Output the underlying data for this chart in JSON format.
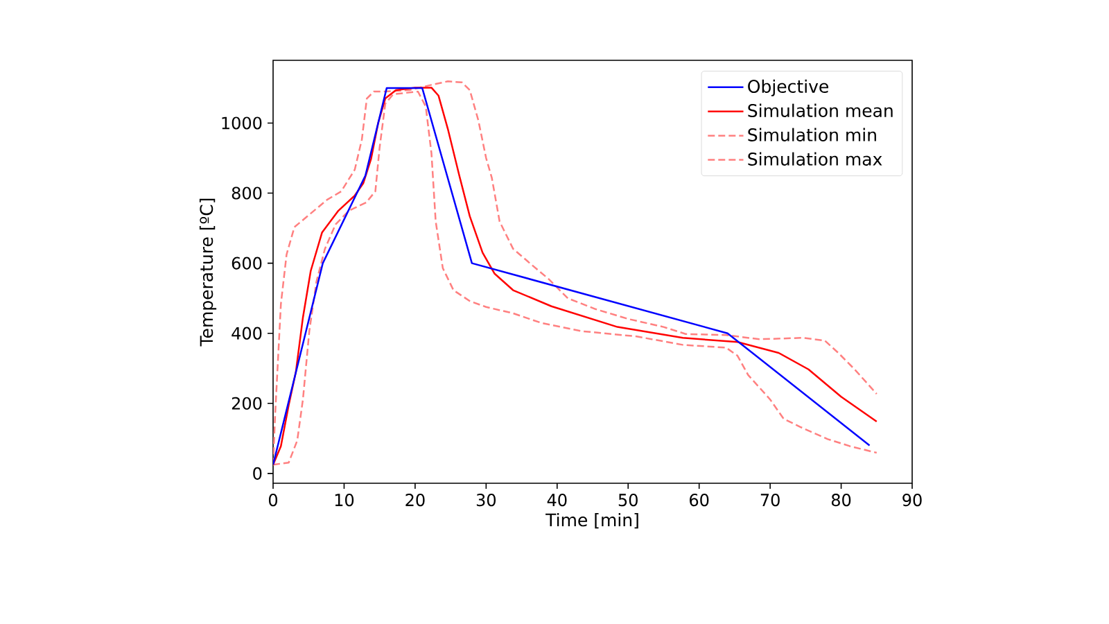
{
  "chart_data": {
    "type": "line",
    "xlabel": "Time [min]",
    "ylabel": "Temperature [ºC]",
    "xlim": [
      0,
      90
    ],
    "ylim": [
      -28,
      1179
    ],
    "xticks": [
      0,
      10,
      20,
      30,
      40,
      50,
      60,
      70,
      80,
      90
    ],
    "yticks": [
      0,
      200,
      400,
      600,
      800,
      1000
    ],
    "grid": false,
    "legend": "top right",
    "marker": "none",
    "series": [
      {
        "name": "Objective",
        "color": "#0000ff",
        "line_style": "solid",
        "x": [
          0,
          7,
          13,
          16,
          21,
          28,
          64,
          84
        ],
        "values": [
          25,
          600,
          850,
          1100,
          1100,
          600,
          400,
          80
        ]
      },
      {
        "name": "Simulation mean",
        "color": "#ff0000",
        "line_style": "solid",
        "x": [
          0,
          1.1,
          2.2,
          3.2,
          4.2,
          5.3,
          6.9,
          9.2,
          11.5,
          12.7,
          13.8,
          14.8,
          15.8,
          17.3,
          20,
          22.3,
          23.3,
          24.6,
          26.2,
          27.7,
          29.5,
          31.2,
          33.8,
          39.2,
          48.5,
          57.7,
          65.4,
          71.2,
          75.4,
          80,
          85
        ],
        "values": [
          25,
          78,
          195,
          289,
          445,
          578,
          688,
          750,
          793,
          828,
          898,
          1000,
          1070,
          1094,
          1101,
          1101,
          1078,
          984,
          852,
          734,
          630,
          570,
          523,
          477,
          418,
          387,
          375,
          344,
          297,
          219,
          148
        ]
      },
      {
        "name": "Simulation min",
        "color": "#ff8080",
        "line_style": "dashed",
        "x": [
          0,
          2.2,
          3.4,
          4.2,
          5.1,
          6.1,
          7.3,
          8.8,
          10.7,
          13.1,
          14.4,
          15,
          15.8,
          16.9,
          20.4,
          21.5,
          22.3,
          22.9,
          23.9,
          25.4,
          27.7,
          30,
          33.8,
          37.7,
          43.5,
          51.2,
          57.7,
          63.8,
          65.4,
          66.9,
          70,
          71.9,
          74.2,
          78.1,
          81.2,
          85
        ],
        "values": [
          25,
          31,
          94,
          211,
          406,
          547,
          641,
          711,
          750,
          773,
          805,
          930,
          1055,
          1082,
          1090,
          1047,
          914,
          719,
          586,
          523,
          492,
          475,
          457,
          430,
          406,
          391,
          367,
          359,
          336,
          281,
          211,
          156,
          133,
          98,
          78,
          59
        ]
      },
      {
        "name": "Simulation max",
        "color": "#ff8080",
        "line_style": "dashed",
        "x": [
          0,
          0.3,
          1.1,
          1.9,
          3,
          5.3,
          7.6,
          9.6,
          11.5,
          12.5,
          13.2,
          14.2,
          15.8,
          19.2,
          22.3,
          24.6,
          26.6,
          27.7,
          28.9,
          30,
          30.8,
          31.9,
          33.8,
          36.5,
          38.8,
          41.5,
          45.4,
          50,
          55,
          58.1,
          63.8,
          68.5,
          74.6,
          77.7,
          79.6,
          81.9,
          85
        ],
        "values": [
          25,
          172,
          484,
          625,
          703,
          742,
          781,
          805,
          867,
          953,
          1070,
          1090,
          1090,
          1094,
          1109,
          1119,
          1116,
          1094,
          1008,
          900,
          844,
          719,
          641,
          594,
          555,
          500,
          469,
          441,
          418,
          398,
          395,
          383,
          387,
          379,
          344,
          297,
          227
        ]
      }
    ]
  }
}
